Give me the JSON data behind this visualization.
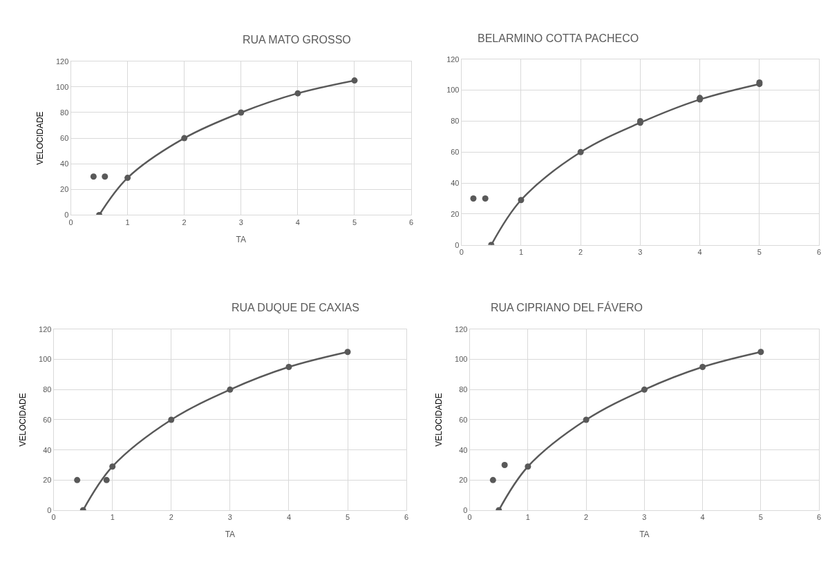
{
  "chart_data": [
    {
      "type": "line",
      "title": "RUA MATO GROSSO",
      "xlabel": "TA",
      "ylabel": "VELOCIDADE",
      "xlim": [
        0,
        6
      ],
      "ylim": [
        0,
        120
      ],
      "xticks": [
        0,
        1,
        2,
        3,
        4,
        5,
        6
      ],
      "yticks": [
        0,
        20,
        40,
        60,
        80,
        100,
        120
      ],
      "grid": true,
      "marker": "circle",
      "series": [
        {
          "type": "line",
          "color": "#595959",
          "x": [
            0.5,
            1,
            2,
            3,
            4,
            5
          ],
          "values": [
            0,
            29,
            60,
            80,
            95,
            105
          ]
        },
        {
          "type": "scatter",
          "color": "#595959",
          "x": [
            0.4,
            0.6
          ],
          "values": [
            30,
            30
          ]
        }
      ]
    },
    {
      "type": "line",
      "title": "BELARMINO COTTA PACHECO",
      "xlim": [
        0,
        6
      ],
      "ylim": [
        0,
        120
      ],
      "xticks": [
        0,
        1,
        2,
        3,
        4,
        5,
        6
      ],
      "yticks": [
        0,
        20,
        40,
        60,
        80,
        100,
        120
      ],
      "grid": true,
      "marker": "circle",
      "series": [
        {
          "type": "line",
          "color": "#595959",
          "x": [
            0.5,
            1,
            2,
            3,
            4,
            5
          ],
          "values": [
            0,
            29,
            60,
            79,
            94,
            104
          ]
        },
        {
          "type": "scatter",
          "color": "#595959",
          "x": [
            0.2,
            0.4,
            3,
            4,
            5
          ],
          "values": [
            30,
            30,
            80,
            95,
            105
          ]
        }
      ]
    },
    {
      "type": "line",
      "title": "RUA DUQUE DE CAXIAS",
      "xlabel": "TA",
      "ylabel": "VELOCIDADE",
      "xlim": [
        0,
        6
      ],
      "ylim": [
        0,
        120
      ],
      "xticks": [
        0,
        1,
        2,
        3,
        4,
        5,
        6
      ],
      "yticks": [
        0,
        20,
        40,
        60,
        80,
        100,
        120
      ],
      "grid": true,
      "marker": "circle",
      "series": [
        {
          "type": "line",
          "color": "#595959",
          "x": [
            0.5,
            1,
            2,
            3,
            4,
            5
          ],
          "values": [
            0,
            29,
            60,
            80,
            95,
            105
          ]
        },
        {
          "type": "scatter",
          "color": "#595959",
          "x": [
            0.4,
            0.9
          ],
          "values": [
            20,
            20
          ]
        }
      ]
    },
    {
      "type": "line",
      "title": "RUA CIPRIANO DEL FÁVERO",
      "xlabel": "TA",
      "ylabel": "VELOCIDADE",
      "xlim": [
        0,
        6
      ],
      "ylim": [
        0,
        120
      ],
      "xticks": [
        0,
        1,
        2,
        3,
        4,
        5,
        6
      ],
      "yticks": [
        0,
        20,
        40,
        60,
        80,
        100,
        120
      ],
      "grid": true,
      "marker": "circle",
      "series": [
        {
          "type": "line",
          "color": "#595959",
          "x": [
            0.5,
            1,
            2,
            3,
            4,
            5
          ],
          "values": [
            0,
            29,
            60,
            80,
            95,
            105
          ]
        },
        {
          "type": "scatter",
          "color": "#595959",
          "x": [
            0.4,
            0.6
          ],
          "values": [
            20,
            30
          ]
        }
      ]
    }
  ]
}
